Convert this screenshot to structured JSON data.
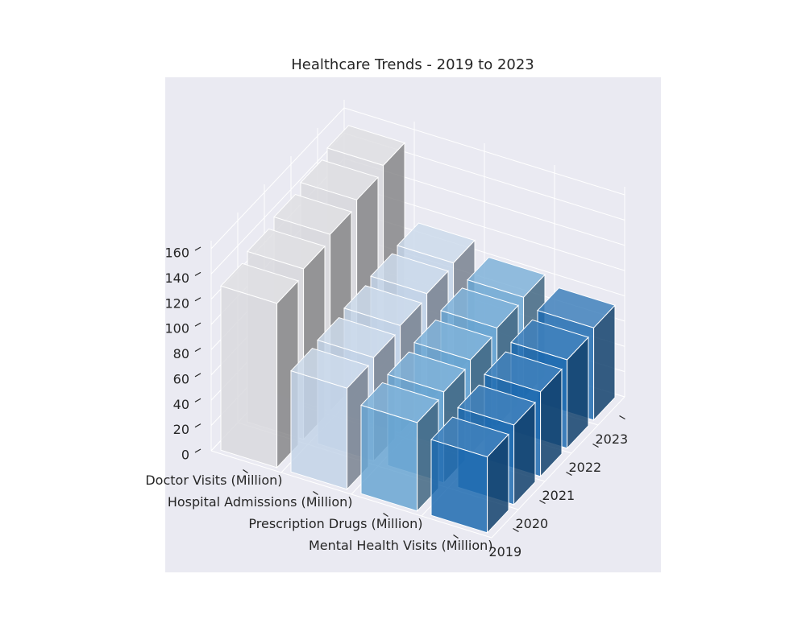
{
  "chart_data": {
    "type": "bar3d",
    "title": "Healthcare Trends - 2019 to 2023",
    "categories": [
      "2019",
      "2020",
      "2021",
      "2022",
      "2023"
    ],
    "series": [
      {
        "name": "Doctor Visits (Million)",
        "color": "#d9d9de",
        "values": [
          130,
          135,
          140,
          145,
          150
        ]
      },
      {
        "name": "Hospital Admissions (Million)",
        "color": "#c3d4e8",
        "values": [
          80,
          82,
          85,
          88,
          90
        ]
      },
      {
        "name": "Prescription Drugs (Million)",
        "color": "#6aa6d2",
        "values": [
          70,
          72,
          75,
          78,
          80
        ]
      },
      {
        "name": "Mental Health Visits (Million)",
        "color": "#1f6bb0",
        "values": [
          60,
          63,
          67,
          70,
          73
        ]
      }
    ],
    "zlim": [
      0,
      160
    ],
    "zticks": [
      0,
      20,
      40,
      60,
      80,
      100,
      120,
      140,
      160
    ],
    "grid": true
  }
}
